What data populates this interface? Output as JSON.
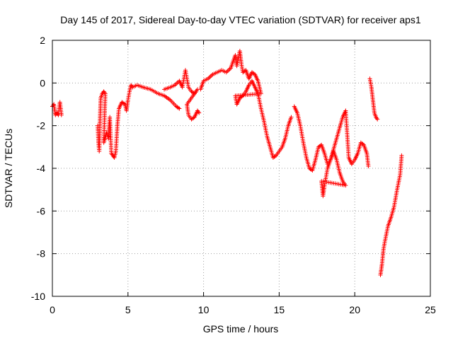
{
  "chart_data": {
    "type": "scatter",
    "title": "Day 145 of 2017, Sidereal Day-to-day VTEC variation (SDTVAR) for receiver aps1",
    "xlabel": "GPS time / hours",
    "ylabel": "SDTVAR / TECUs",
    "xlim": [
      0,
      25
    ],
    "ylim": [
      -10,
      2
    ],
    "xticks": [
      0,
      5,
      10,
      15,
      20,
      25
    ],
    "yticks": [
      -10,
      -8,
      -6,
      -4,
      -2,
      0,
      2
    ],
    "grid": true,
    "marker": "+",
    "series": [
      {
        "name": "SDTVAR",
        "color": "#ff0000",
        "segments": [
          [
            [
              0.0,
              -1.1
            ],
            [
              0.1,
              -1.0
            ],
            [
              0.2,
              -1.5
            ],
            [
              0.3,
              -1.4
            ],
            [
              0.4,
              -1.5
            ],
            [
              0.5,
              -0.9
            ],
            [
              0.6,
              -1.5
            ]
          ],
          [
            [
              3.0,
              -2.0
            ],
            [
              3.05,
              -2.8
            ],
            [
              3.1,
              -3.2
            ],
            [
              3.15,
              -1.7
            ],
            [
              3.2,
              -0.7
            ],
            [
              3.3,
              -0.5
            ],
            [
              3.4,
              -0.4
            ],
            [
              3.5,
              -0.5
            ],
            [
              3.4,
              -2.8
            ],
            [
              3.6,
              -2.3
            ],
            [
              3.7,
              -2.6
            ],
            [
              3.8,
              -1.6
            ],
            [
              3.9,
              -3.3
            ],
            [
              4.0,
              -3.4
            ],
            [
              4.1,
              -3.5
            ],
            [
              4.2,
              -3.2
            ],
            [
              4.3,
              -2.0
            ],
            [
              4.4,
              -1.2
            ],
            [
              4.6,
              -0.9
            ],
            [
              4.8,
              -1.0
            ],
            [
              4.9,
              -1.3
            ],
            [
              5.0,
              -0.8
            ],
            [
              5.1,
              -0.4
            ],
            [
              5.2,
              -0.1
            ],
            [
              5.3,
              -0.2
            ],
            [
              5.6,
              -0.1
            ],
            [
              6.0,
              -0.2
            ],
            [
              6.5,
              -0.3
            ],
            [
              7.0,
              -0.5
            ],
            [
              7.4,
              -0.6
            ],
            [
              7.8,
              -0.8
            ],
            [
              8.2,
              -1.1
            ],
            [
              8.4,
              -1.2
            ]
          ],
          [
            [
              7.4,
              -0.3
            ],
            [
              7.8,
              -0.2
            ],
            [
              8.1,
              -0.1
            ],
            [
              8.4,
              0.1
            ],
            [
              8.6,
              -0.2
            ],
            [
              8.8,
              0.6
            ],
            [
              8.9,
              0.2
            ],
            [
              9.0,
              -0.2
            ],
            [
              9.2,
              -0.4
            ],
            [
              9.4,
              -0.5
            ],
            [
              9.6,
              -0.3
            ],
            [
              8.9,
              -1.0
            ],
            [
              9.0,
              -1.5
            ],
            [
              9.2,
              -1.7
            ],
            [
              9.4,
              -1.6
            ],
            [
              9.6,
              -1.3
            ],
            [
              9.7,
              -1.4
            ]
          ],
          [
            [
              9.8,
              -0.3
            ],
            [
              10.0,
              0.1
            ],
            [
              10.3,
              0.2
            ],
            [
              10.6,
              0.4
            ],
            [
              10.9,
              0.5
            ],
            [
              11.2,
              0.6
            ],
            [
              11.5,
              0.5
            ],
            [
              11.8,
              0.7
            ],
            [
              12.0,
              1.1
            ],
            [
              12.1,
              1.3
            ],
            [
              12.2,
              0.8
            ],
            [
              12.4,
              1.5
            ],
            [
              12.5,
              0.9
            ],
            [
              12.6,
              0.5
            ],
            [
              12.8,
              0.6
            ],
            [
              13.0,
              0.2
            ],
            [
              13.2,
              0.5
            ],
            [
              13.4,
              0.4
            ],
            [
              13.6,
              0.1
            ],
            [
              13.8,
              -0.5
            ],
            [
              12.1,
              -0.6
            ],
            [
              12.2,
              -1.0
            ],
            [
              12.4,
              -0.7
            ],
            [
              12.6,
              -0.6
            ],
            [
              12.8,
              -0.4
            ],
            [
              13.0,
              -0.1
            ],
            [
              13.2,
              0.1
            ],
            [
              13.4,
              -0.2
            ],
            [
              13.6,
              -0.5
            ],
            [
              13.8,
              -1.2
            ],
            [
              14.0,
              -1.8
            ],
            [
              14.2,
              -2.5
            ],
            [
              14.4,
              -3.0
            ],
            [
              14.6,
              -3.5
            ],
            [
              14.8,
              -3.4
            ],
            [
              15.0,
              -3.2
            ],
            [
              15.2,
              -3.0
            ],
            [
              15.4,
              -2.6
            ],
            [
              15.6,
              -2.0
            ],
            [
              15.8,
              -1.6
            ]
          ],
          [
            [
              16.0,
              -1.1
            ],
            [
              16.2,
              -1.4
            ],
            [
              16.4,
              -2.0
            ],
            [
              16.6,
              -2.8
            ],
            [
              16.8,
              -3.5
            ],
            [
              17.0,
              -4.0
            ],
            [
              17.2,
              -4.1
            ],
            [
              17.4,
              -3.6
            ],
            [
              17.6,
              -3.0
            ],
            [
              17.8,
              -2.9
            ],
            [
              18.0,
              -3.3
            ],
            [
              18.2,
              -3.8
            ],
            [
              18.4,
              -3.6
            ],
            [
              18.6,
              -3.2
            ],
            [
              18.8,
              -3.6
            ],
            [
              19.0,
              -4.2
            ],
            [
              19.2,
              -4.6
            ],
            [
              19.4,
              -4.8
            ],
            [
              17.8,
              -4.6
            ],
            [
              17.9,
              -5.3
            ],
            [
              18.0,
              -4.8
            ],
            [
              18.2,
              -4.0
            ],
            [
              18.4,
              -3.6
            ],
            [
              18.6,
              -3.1
            ],
            [
              18.8,
              -2.6
            ],
            [
              19.0,
              -2.1
            ],
            [
              19.2,
              -1.6
            ],
            [
              19.4,
              -1.3
            ],
            [
              19.6,
              -3.5
            ],
            [
              19.8,
              -3.8
            ],
            [
              20.0,
              -3.6
            ],
            [
              20.2,
              -3.3
            ],
            [
              20.4,
              -2.8
            ],
            [
              20.6,
              -2.9
            ],
            [
              20.8,
              -3.3
            ],
            [
              20.9,
              -3.9
            ]
          ],
          [
            [
              21.0,
              0.2
            ],
            [
              21.1,
              -0.2
            ],
            [
              21.2,
              -0.8
            ],
            [
              21.3,
              -1.4
            ],
            [
              21.4,
              -1.6
            ],
            [
              21.5,
              -1.7
            ]
          ],
          [
            [
              21.7,
              -9.0
            ],
            [
              21.8,
              -8.5
            ],
            [
              21.9,
              -7.8
            ],
            [
              22.0,
              -7.4
            ],
            [
              22.2,
              -6.7
            ],
            [
              22.4,
              -6.3
            ],
            [
              22.6,
              -5.8
            ],
            [
              22.8,
              -5.0
            ],
            [
              23.0,
              -4.3
            ],
            [
              23.1,
              -3.4
            ]
          ]
        ]
      }
    ]
  }
}
